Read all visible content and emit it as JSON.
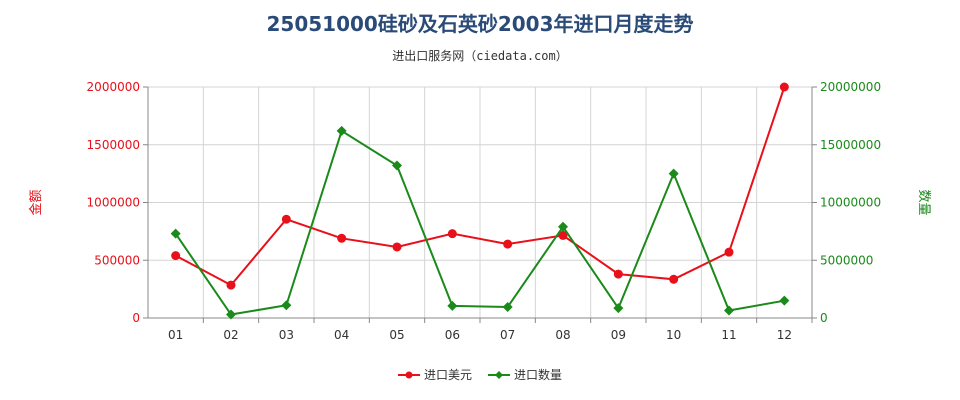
{
  "chart_data": {
    "type": "line",
    "title": "25051000硅砂及石英砂2003年进口月度走势",
    "subtitle": "进出口服务网（ciedata.com）",
    "categories": [
      "01",
      "02",
      "03",
      "04",
      "05",
      "06",
      "07",
      "08",
      "09",
      "10",
      "11",
      "12"
    ],
    "left_axis": {
      "label": "金额",
      "ticks": [
        "0",
        "500000",
        "1000000",
        "1500000",
        "2000000"
      ],
      "range": [
        0,
        2000000
      ],
      "color": "#e8101a"
    },
    "right_axis": {
      "label": "数量",
      "ticks": [
        "0",
        "5000000",
        "10000000",
        "15000000",
        "20000000"
      ],
      "range": [
        0,
        20000000
      ],
      "color": "#1a8a1a"
    },
    "series": [
      {
        "name": "进口美元",
        "axis": "left",
        "color": "#e8101a",
        "marker": "circle",
        "values": [
          540000,
          285000,
          855000,
          690000,
          615000,
          730000,
          640000,
          715000,
          380000,
          335000,
          570000,
          2000000
        ]
      },
      {
        "name": "进口数量",
        "axis": "right",
        "color": "#1a8a1a",
        "marker": "diamond",
        "values": [
          7300000,
          300000,
          1100000,
          16200000,
          13200000,
          1050000,
          950000,
          7900000,
          850000,
          12500000,
          650000,
          1500000
        ]
      }
    ],
    "grid": true,
    "legend_position": "bottom-center"
  }
}
